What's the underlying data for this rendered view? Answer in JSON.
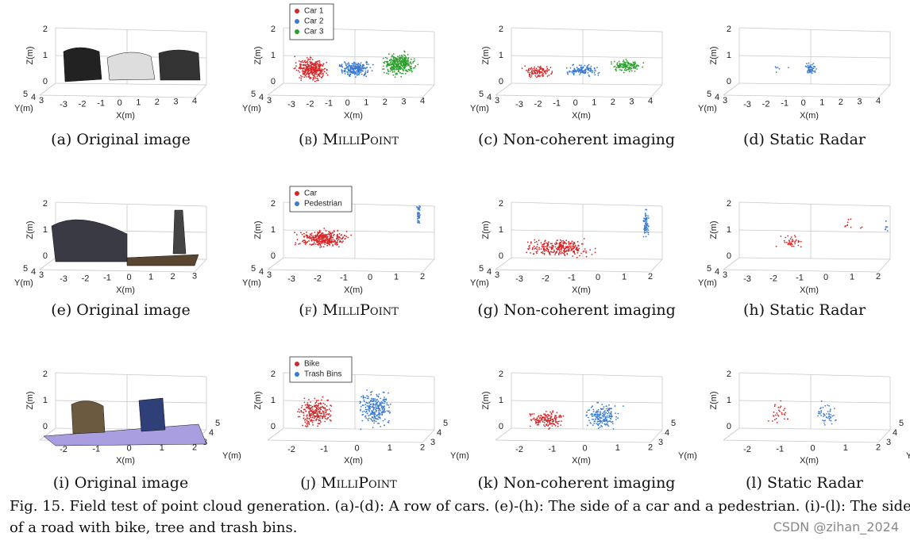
{
  "panels": [
    {
      "caption": "(a) Original image",
      "x_label": "X(m)",
      "y_label": "Y(m)",
      "z_label": "Z(m)",
      "x_ticks": [
        "-3",
        "-2",
        "-1",
        "0",
        "1",
        "2",
        "3",
        "4"
      ],
      "y_ticks": [
        "5",
        "4",
        "3"
      ],
      "z_ticks": [
        "0",
        "1",
        "2"
      ]
    },
    {
      "caption": "(b) MilliPoint",
      "x_label": "X(m)",
      "y_label": "Y(m)",
      "z_label": "Z(m)",
      "x_ticks": [
        "-3",
        "-2",
        "-1",
        "0",
        "1",
        "2",
        "3",
        "4"
      ],
      "y_ticks": [
        "5",
        "4",
        "3"
      ],
      "z_ticks": [
        "0",
        "1",
        "2"
      ],
      "legend": [
        {
          "name": "Car 1",
          "color": "#d62728"
        },
        {
          "name": "Car 2",
          "color": "#3a7bd5"
        },
        {
          "name": "Car 3",
          "color": "#2ca02c"
        }
      ]
    },
    {
      "caption": "(c) Non-coherent imaging",
      "x_label": "X(m)",
      "y_label": "Y(m)",
      "z_label": "Z(m)",
      "x_ticks": [
        "-3",
        "-2",
        "-1",
        "0",
        "1",
        "2",
        "3",
        "4"
      ],
      "y_ticks": [
        "5",
        "4",
        "3"
      ],
      "z_ticks": [
        "0",
        "1",
        "2"
      ]
    },
    {
      "caption": "(d) Static Radar",
      "x_label": "X(m)",
      "y_label": "Y(m)",
      "z_label": "Z(m)",
      "x_ticks": [
        "-3",
        "-2",
        "-1",
        "0",
        "1",
        "2",
        "3",
        "4"
      ],
      "y_ticks": [
        "5",
        "4",
        "3"
      ],
      "z_ticks": [
        "0",
        "1",
        "2"
      ]
    },
    {
      "caption": "(e) Original image",
      "x_label": "X(m)",
      "y_label": "Y(m)",
      "z_label": "Z(m)",
      "x_ticks": [
        "-3",
        "-2",
        "-1",
        "0",
        "1",
        "2",
        "3"
      ],
      "y_ticks": [
        "5",
        "4",
        "3"
      ],
      "z_ticks": [
        "0",
        "1",
        "2"
      ]
    },
    {
      "caption": "(f) MilliPoint",
      "x_label": "X(m)",
      "y_label": "Y(m)",
      "z_label": "Z(m)",
      "x_ticks": [
        "-3",
        "-2",
        "-1",
        "0",
        "1",
        "2"
      ],
      "y_ticks": [
        "5",
        "4",
        "3"
      ],
      "z_ticks": [
        "0",
        "1",
        "2"
      ],
      "legend": [
        {
          "name": "Car",
          "color": "#d62728"
        },
        {
          "name": "Pedestrian",
          "color": "#3a7bd5"
        }
      ]
    },
    {
      "caption": "(g) Non-coherent imaging",
      "x_label": "X(m)",
      "y_label": "Y(m)",
      "z_label": "Z(m)",
      "x_ticks": [
        "-3",
        "-2",
        "-1",
        "0",
        "1",
        "2"
      ],
      "y_ticks": [
        "5",
        "4",
        "3"
      ],
      "z_ticks": [
        "0",
        "1",
        "2"
      ]
    },
    {
      "caption": "(h) Static Radar",
      "x_label": "X(m)",
      "y_label": "Y(m)",
      "z_label": "Z(m)",
      "x_ticks": [
        "-3",
        "-2",
        "-1",
        "0",
        "1",
        "2"
      ],
      "y_ticks": [
        "5",
        "4",
        "3"
      ],
      "z_ticks": [
        "0",
        "1",
        "2"
      ]
    },
    {
      "caption": "(i) Original image",
      "x_label": "X(m)",
      "y_label": "Y(m)",
      "z_label": "Z(m)",
      "x_ticks": [
        "-2",
        "-1",
        "0",
        "1",
        "2"
      ],
      "y_ticks": [
        "3",
        "4",
        "5"
      ],
      "z_ticks": [
        "0",
        "1",
        "2"
      ]
    },
    {
      "caption": "(j) MilliPoint",
      "x_label": "X(m)",
      "y_label": "Y(m)",
      "z_label": "Z(m)",
      "x_ticks": [
        "-2",
        "-1",
        "0",
        "1",
        "2"
      ],
      "y_ticks": [
        "3",
        "4",
        "5"
      ],
      "z_ticks": [
        "0",
        "1",
        "2"
      ],
      "legend": [
        {
          "name": "Bike",
          "color": "#d62728"
        },
        {
          "name": "Trash Bins",
          "color": "#3a7bd5"
        }
      ]
    },
    {
      "caption": "(k) Non-coherent imaging",
      "x_label": "X(m)",
      "y_label": "Y(m)",
      "z_label": "Z(m)",
      "x_ticks": [
        "-2",
        "-1",
        "0",
        "1",
        "2"
      ],
      "y_ticks": [
        "3",
        "4",
        "5"
      ],
      "z_ticks": [
        "0",
        "1",
        "2"
      ]
    },
    {
      "caption": "(l) Static Radar",
      "x_label": "X(m)",
      "y_label": "Y(m)",
      "z_label": "Z(m)",
      "x_ticks": [
        "-2",
        "-1",
        "0",
        "1",
        "2"
      ],
      "y_ticks": [
        "3",
        "4",
        "5"
      ],
      "z_ticks": [
        "0",
        "1",
        "2"
      ]
    }
  ],
  "figure_caption": [
    "Fig. 15.  Field test of point cloud generation. (a)-(d): A row of cars. (e)-(h): The side of a car and a pedestrian. (i)-(l): The side",
    "of a road with bike, tree and trash bins."
  ],
  "watermark": "CSDN @zihan_2024"
}
